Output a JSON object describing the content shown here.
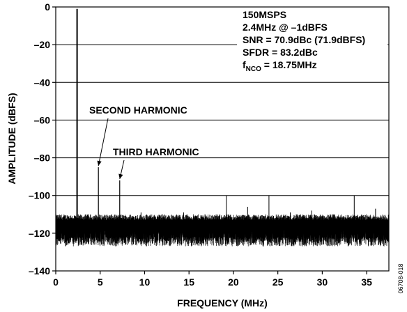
{
  "chart_data": {
    "type": "line",
    "xlabel": "FREQUENCY (MHz)",
    "ylabel": "AMPLITUDE (dBFS)",
    "xlim": [
      0,
      37.5
    ],
    "ylim": [
      -140,
      0
    ],
    "x_ticks": [
      0,
      5,
      10,
      15,
      20,
      25,
      30,
      35
    ],
    "x_tick_labels": [
      "0",
      "5",
      "10",
      "15",
      "20",
      "25",
      "30",
      "35"
    ],
    "y_ticks": [
      0,
      -20,
      -40,
      -60,
      -80,
      -100,
      -120,
      -140
    ],
    "y_tick_labels": [
      "0",
      "–20",
      "–40",
      "–60",
      "–80",
      "–100",
      "–120",
      "–140"
    ],
    "grid": "horizontal",
    "noise_floor_dbfs": -118,
    "peaks": [
      {
        "x": 2.4,
        "y": -1,
        "name": "fundamental"
      },
      {
        "x": 4.8,
        "y": -85,
        "name": "second harmonic"
      },
      {
        "x": 7.2,
        "y": -92,
        "name": "third harmonic"
      }
    ],
    "spurs": [
      {
        "x": 3.6,
        "y": -110
      },
      {
        "x": 9.6,
        "y": -109
      },
      {
        "x": 12.0,
        "y": -110
      },
      {
        "x": 14.4,
        "y": -109
      },
      {
        "x": 16.8,
        "y": -110
      },
      {
        "x": 19.2,
        "y": -100
      },
      {
        "x": 21.6,
        "y": -106
      },
      {
        "x": 24.0,
        "y": -100
      },
      {
        "x": 26.4,
        "y": -109
      },
      {
        "x": 28.8,
        "y": -108
      },
      {
        "x": 31.2,
        "y": -110
      },
      {
        "x": 33.6,
        "y": -100
      },
      {
        "x": 36.0,
        "y": -107
      }
    ],
    "annotations": [
      {
        "text": "SECOND HARMONIC",
        "x": 4.8,
        "y": -85
      },
      {
        "text": "THIRD HARMONIC",
        "x": 7.2,
        "y": -92
      }
    ],
    "info_lines": [
      "150MSPS",
      "2.4MHz @ –1dBFS",
      "SNR = 70.9dBc (71.9dBFS)",
      "SFDR = 83.2dBc"
    ],
    "nco_line": {
      "prefix": "f",
      "subscript": "NCO",
      "suffix": " = 18.75MHz"
    },
    "figure_id": "06708-018"
  }
}
